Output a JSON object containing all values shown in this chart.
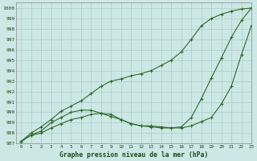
{
  "title": "Graphe pression niveau de la mer (hPa)",
  "xlim": [
    -0.5,
    23
  ],
  "ylim": [
    987,
    1000.5
  ],
  "yticks": [
    987,
    988,
    989,
    990,
    991,
    992,
    993,
    994,
    995,
    996,
    997,
    998,
    999,
    1000
  ],
  "xticks": [
    0,
    1,
    2,
    3,
    4,
    5,
    6,
    7,
    8,
    9,
    10,
    11,
    12,
    13,
    14,
    15,
    16,
    17,
    18,
    19,
    20,
    21,
    22,
    23
  ],
  "bg_color": "#cce8e4",
  "line_color": "#2d6b2d",
  "grid_color": "#aaccc8",
  "line1": [
    987.2,
    987.8,
    988.0,
    988.5,
    988.9,
    989.3,
    989.5,
    989.8,
    989.9,
    989.8,
    989.3,
    988.9,
    988.7,
    988.6,
    988.5,
    988.5,
    988.5,
    988.7,
    989.1,
    989.5,
    990.8,
    992.5,
    995.5,
    998.3
  ],
  "line2": [
    987.2,
    987.8,
    988.2,
    989.0,
    989.5,
    990.0,
    990.2,
    990.2,
    989.9,
    989.6,
    989.3,
    988.9,
    988.7,
    988.7,
    988.6,
    988.5,
    988.6,
    989.5,
    991.3,
    993.3,
    995.2,
    997.2,
    998.8,
    1000.0
  ],
  "line3": [
    987.2,
    988.0,
    988.6,
    989.3,
    990.1,
    990.6,
    991.1,
    991.8,
    992.5,
    993.0,
    993.2,
    993.5,
    993.7,
    994.0,
    994.5,
    995.0,
    995.8,
    997.0,
    998.3,
    999.0,
    999.4,
    999.7,
    999.9,
    1000.0
  ]
}
